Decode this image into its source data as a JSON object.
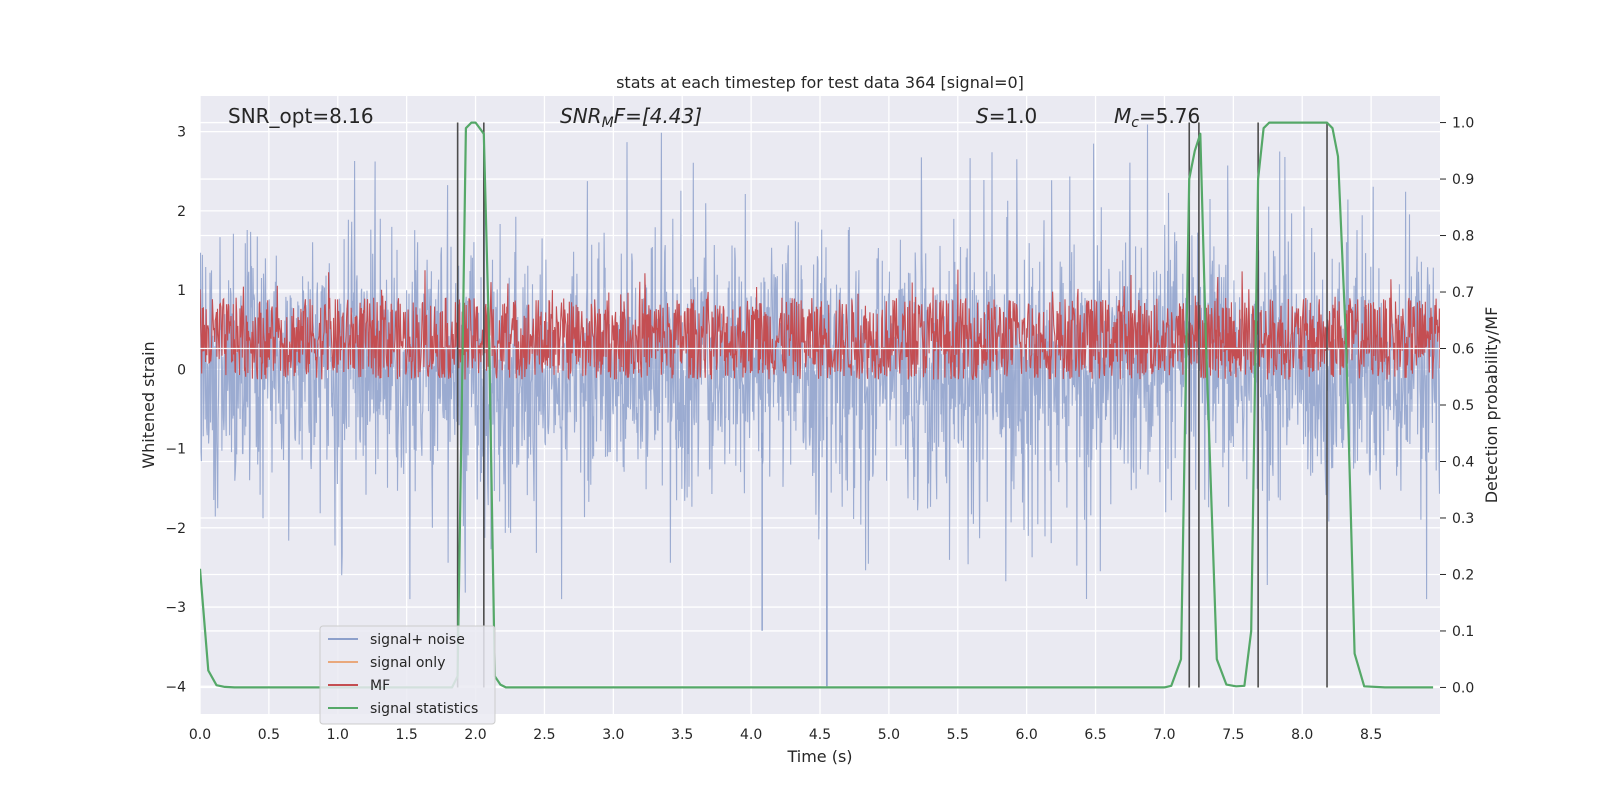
{
  "chart_data": {
    "type": "line",
    "title": "stats at each timestep for test data 364 [signal=0]",
    "xlabel": "Time (s)",
    "ylabel_left": "Whitened strain",
    "ylabel_right": "Detection probability/MF",
    "xlim": [
      0,
      9.0
    ],
    "ylim_left": [
      -4.35,
      3.45
    ],
    "ylim_right": [
      -0.047,
      1.047
    ],
    "x_ticks": [
      0.0,
      0.5,
      1.0,
      1.5,
      2.0,
      2.5,
      3.0,
      3.5,
      4.0,
      4.5,
      5.0,
      5.5,
      6.0,
      6.5,
      7.0,
      7.5,
      8.0,
      8.5
    ],
    "x_tick_labels": [
      "0.0",
      "0.5",
      "1.0",
      "1.5",
      "2.0",
      "2.5",
      "3.0",
      "3.5",
      "4.0",
      "4.5",
      "5.0",
      "5.5",
      "6.0",
      "6.5",
      "7.0",
      "7.5",
      "8.0",
      "8.5"
    ],
    "y_left_ticks": [
      -4,
      -3,
      -2,
      -1,
      0,
      1,
      2,
      3
    ],
    "y_left_tick_labels": [
      "−4",
      "−3",
      "−2",
      "−1",
      "0",
      "1",
      "2",
      "3"
    ],
    "y_right_ticks": [
      0.0,
      0.1,
      0.2,
      0.3,
      0.4,
      0.5,
      0.6,
      0.7,
      0.8,
      0.9,
      1.0
    ],
    "y_right_tick_labels": [
      "0.0",
      "0.1",
      "0.2",
      "0.3",
      "0.4",
      "0.5",
      "0.6",
      "0.7",
      "0.8",
      "0.9",
      "1.0"
    ],
    "grid": true,
    "legend_position": "lower-left",
    "annotations": {
      "snr_opt": "SNR_opt=8.16",
      "snr_mf_main": "SNR",
      "snr_mf_sub": "M",
      "snr_mf_rest": "F=[4.43]",
      "s_main": "S",
      "s_rest": "=1.0",
      "mc_main": "M",
      "mc_sub": "c",
      "mc_rest": "=5.76"
    },
    "series": [
      {
        "name": "signal+ noise",
        "color": "#8da0cb",
        "axis": "left",
        "description_values": "dense noise band roughly between -1.5 and 1.5 with spikes to about 3.1 and -4"
      },
      {
        "name": "signal only",
        "color": "#e9a87c",
        "axis": "left"
      },
      {
        "name": "MF",
        "color": "#c44e52",
        "axis": "right",
        "band": [
          0.545,
          0.69
        ]
      },
      {
        "name": "signal statistics",
        "color": "#55a868",
        "axis": "right",
        "x": [
          0.0,
          0.06,
          0.12,
          0.18,
          0.25,
          0.5,
          1.0,
          1.5,
          1.83,
          1.87,
          1.9,
          1.93,
          1.97,
          2.0,
          2.03,
          2.06,
          2.1,
          2.14,
          2.18,
          2.22,
          2.3,
          3.0,
          4.0,
          5.0,
          6.0,
          7.0,
          7.05,
          7.12,
          7.18,
          7.22,
          7.26,
          7.3,
          7.38,
          7.45,
          7.52,
          7.58,
          7.63,
          7.68,
          7.72,
          7.76,
          7.85,
          8.0,
          8.1,
          8.18,
          8.22,
          8.26,
          8.32,
          8.38,
          8.45,
          8.6,
          8.95
        ],
        "y": [
          0.21,
          0.03,
          0.004,
          0.001,
          0.0,
          0.0,
          0.0,
          0.0,
          0.0,
          0.02,
          0.5,
          0.99,
          1.0,
          1.0,
          0.99,
          0.98,
          0.6,
          0.02,
          0.005,
          0.0,
          0.0,
          0.0,
          0.0,
          0.0,
          0.0,
          0.0,
          0.003,
          0.05,
          0.9,
          0.95,
          0.98,
          0.62,
          0.05,
          0.005,
          0.002,
          0.003,
          0.1,
          0.9,
          0.99,
          1.0,
          1.0,
          1.0,
          1.0,
          1.0,
          0.99,
          0.94,
          0.6,
          0.06,
          0.002,
          0.0,
          0.0
        ]
      }
    ],
    "vertical_lines_x": [
      1.87,
      2.06,
      7.18,
      7.25,
      7.68,
      8.18
    ]
  }
}
